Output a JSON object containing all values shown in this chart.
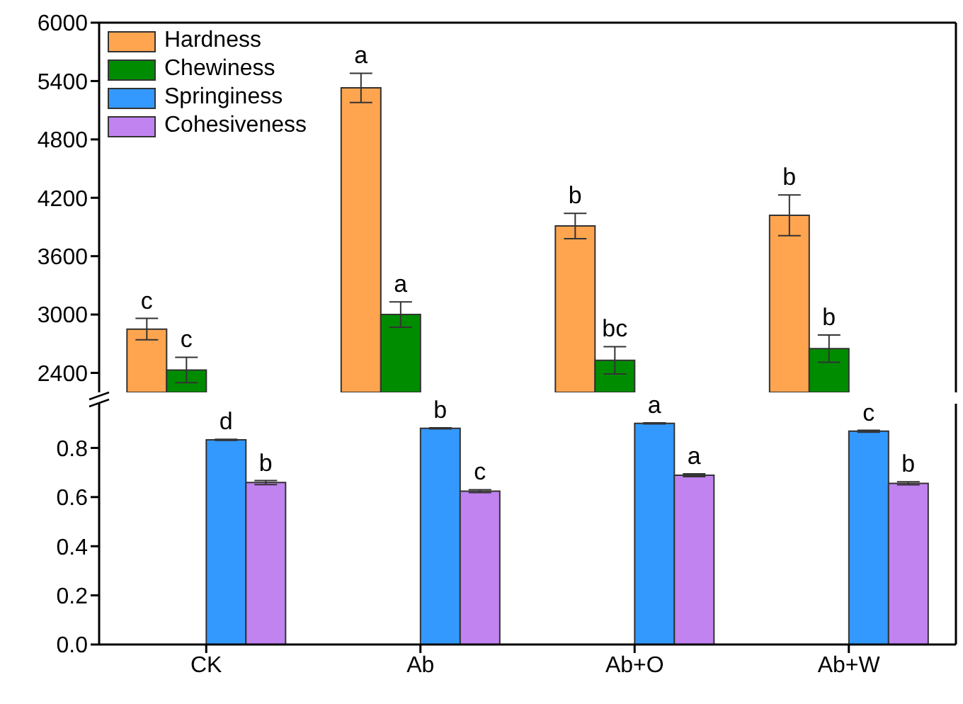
{
  "chart_data": [
    {
      "type": "bar",
      "categories": [
        null,
        null,
        null,
        null
      ],
      "series": [
        {
          "name": "Hardness",
          "color": "#ffa54f",
          "values": [
            2850,
            5330,
            3910,
            4020
          ],
          "errors": [
            110,
            150,
            130,
            210
          ],
          "value_labels": [
            "c",
            "a",
            "b",
            "b"
          ]
        },
        {
          "name": "Chewiness",
          "color": "#008c00",
          "values": [
            2430,
            3000,
            2530,
            2650
          ],
          "errors": [
            130,
            130,
            140,
            140
          ],
          "value_labels": [
            "c",
            "a",
            "bc",
            "b"
          ]
        }
      ],
      "ylim": [
        2200,
        6000
      ],
      "yticks": [
        2400,
        3000,
        3600,
        4200,
        4800,
        5400,
        6000
      ],
      "tick_labels": "y",
      "legend": "top left"
    },
    {
      "type": "bar",
      "categories": [
        "CK",
        "Ab",
        "Ab+O",
        "Ab+W"
      ],
      "series": [
        {
          "name": "Springiness",
          "color": "#3399ff",
          "values": [
            0.833,
            0.88,
            0.9,
            0.868
          ],
          "errors": [
            0.002,
            0.002,
            0.002,
            0.004
          ],
          "value_labels": [
            "d",
            "b",
            "a",
            "c"
          ]
        },
        {
          "name": "Cohesiveness",
          "color": "#c183f0",
          "values": [
            0.659,
            0.624,
            0.689,
            0.656
          ],
          "errors": [
            0.008,
            0.006,
            0.006,
            0.006
          ],
          "value_labels": [
            "b",
            "c",
            "a",
            "b"
          ]
        }
      ],
      "ylim": [
        0,
        0.98
      ],
      "yticks": [
        {
          "value": 0,
          "label": "0.0"
        },
        0.2,
        0.4,
        0.6,
        0.8
      ],
      "legend": "top left"
    }
  ]
}
